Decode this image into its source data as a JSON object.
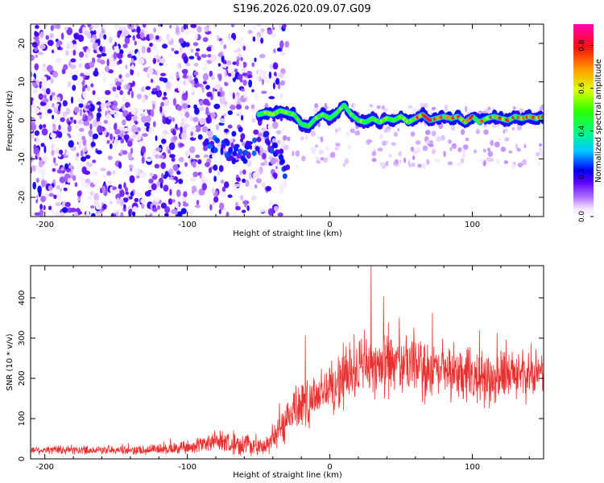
{
  "title": "S196.2026.020.09.07.G09",
  "chart_data": [
    {
      "type": "heatmap",
      "xlabel": "Height of straight line (km)",
      "ylabel": "Frequency (Hz)",
      "xlim": [
        -210,
        150
      ],
      "ylim": [
        -25,
        25
      ],
      "x_ticks": [
        -200,
        -100,
        0,
        100
      ],
      "x_tick_labels": [
        "-200",
        "-100",
        "0",
        "100"
      ],
      "y_ticks": [
        -20,
        -10,
        0,
        10,
        20
      ],
      "y_tick_labels": [
        "-20",
        "-10",
        "0",
        "10",
        "20"
      ],
      "colorbar": {
        "label": "Normalized spectral amplitude",
        "range": [
          0.0,
          0.9
        ],
        "ticks": [
          0.0,
          0.2,
          0.4,
          0.6,
          0.8
        ],
        "tick_labels": [
          "0.0",
          "0.2",
          "0.4",
          "0.6",
          "0.8"
        ]
      },
      "trace_points": [
        [
          -50,
          1.5
        ],
        [
          -45,
          2
        ],
        [
          -40,
          1.5
        ],
        [
          -35,
          2.5
        ],
        [
          -30,
          2
        ],
        [
          -25,
          1.5
        ],
        [
          -20,
          -1
        ],
        [
          -15,
          -1.5
        ],
        [
          -10,
          0.5
        ],
        [
          -5,
          1.5
        ],
        [
          0,
          0.5
        ],
        [
          5,
          2
        ],
        [
          10,
          4
        ],
        [
          15,
          1.5
        ],
        [
          20,
          0
        ],
        [
          25,
          -0.5
        ],
        [
          30,
          0.5
        ],
        [
          35,
          -0.5
        ],
        [
          40,
          0.5
        ],
        [
          45,
          0
        ],
        [
          50,
          1
        ],
        [
          55,
          -0.5
        ],
        [
          60,
          0.5
        ],
        [
          65,
          1.5
        ],
        [
          70,
          0
        ],
        [
          75,
          0.5
        ],
        [
          80,
          1
        ],
        [
          85,
          0.5
        ],
        [
          90,
          1
        ],
        [
          95,
          -0.5
        ],
        [
          100,
          1
        ],
        [
          105,
          -0.5
        ],
        [
          110,
          0.5
        ],
        [
          115,
          1
        ],
        [
          120,
          0.5
        ],
        [
          125,
          0
        ],
        [
          130,
          1
        ],
        [
          135,
          0.5
        ],
        [
          140,
          1
        ],
        [
          145,
          0.5
        ],
        [
          150,
          1
        ]
      ],
      "branch_points": [
        [
          -90,
          -5
        ],
        [
          -80,
          -6
        ],
        [
          -70,
          -8
        ],
        [
          -60,
          -9
        ],
        [
          -45,
          -5
        ],
        [
          -35,
          -10
        ],
        [
          -30,
          -14
        ]
      ],
      "noise_region_x": [
        -210,
        -50
      ]
    },
    {
      "type": "line",
      "xlabel": "Height of straight line (km)",
      "ylabel": "SNR (10 * v/v)",
      "xlim": [
        -210,
        150
      ],
      "ylim": [
        0,
        480
      ],
      "x_ticks": [
        -200,
        -100,
        0,
        100
      ],
      "x_tick_labels": [
        "-200",
        "-100",
        "0",
        "100"
      ],
      "y_ticks": [
        0,
        100,
        200,
        300,
        400
      ],
      "y_tick_labels": [
        "0",
        "100",
        "200",
        "300",
        "400"
      ],
      "series": [
        {
          "name": "SNR",
          "color": "#e8312f",
          "envelope_x": [
            -210,
            -130,
            -100,
            -80,
            -60,
            -45,
            -35,
            -25,
            -15,
            -5,
            5,
            15,
            30,
            60,
            100,
            130,
            150
          ],
          "envelope_mean": [
            22,
            22,
            28,
            45,
            35,
            30,
            70,
            130,
            150,
            170,
            185,
            215,
            240,
            225,
            200,
            205,
            210
          ],
          "envelope_spread": [
            12,
            14,
            20,
            30,
            30,
            25,
            55,
            80,
            85,
            80,
            80,
            90,
            100,
            90,
            80,
            75,
            70
          ],
          "peak": {
            "x": 29,
            "y": 480
          }
        }
      ]
    }
  ]
}
